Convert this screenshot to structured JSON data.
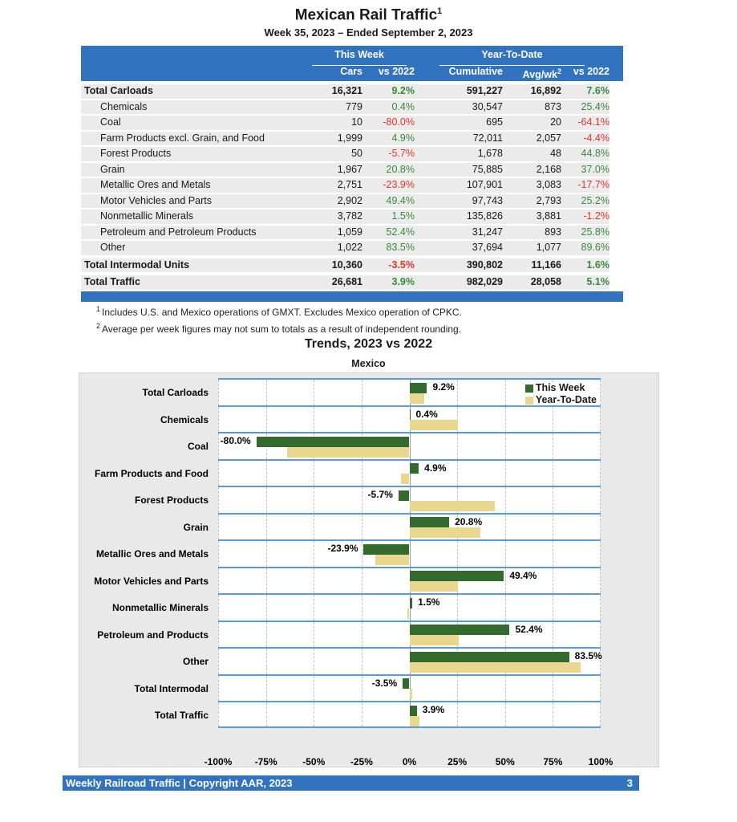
{
  "page": {
    "title": "Mexican Rail Traffic",
    "title_superscript": "1",
    "subtitle": "Week 35, 2023 – Ended September 2, 2023"
  },
  "table": {
    "group_headers": {
      "this_week": "This Week",
      "ytd": "Year-To-Date"
    },
    "columns": {
      "cars": "Cars",
      "cars_vs": "vs 2022",
      "cumulative": "Cumulative",
      "avg_wk": "Avg/wk",
      "avg_wk_superscript": "2",
      "ytd_vs": "vs 2022"
    },
    "rows": [
      {
        "label": "Total Carloads",
        "total": true,
        "cars": "16,321",
        "cars_vs": "9.2%",
        "cumulative": "591,227",
        "avg_wk": "16,892",
        "ytd_vs": "7.6%"
      },
      {
        "label": "Chemicals",
        "total": false,
        "cars": "779",
        "cars_vs": "0.4%",
        "cumulative": "30,547",
        "avg_wk": "873",
        "ytd_vs": "25.4%"
      },
      {
        "label": "Coal",
        "total": false,
        "cars": "10",
        "cars_vs": "-80.0%",
        "cumulative": "695",
        "avg_wk": "20",
        "ytd_vs": "-64.1%"
      },
      {
        "label": "Farm Products excl. Grain, and Food",
        "total": false,
        "cars": "1,999",
        "cars_vs": "4.9%",
        "cumulative": "72,011",
        "avg_wk": "2,057",
        "ytd_vs": "-4.4%"
      },
      {
        "label": "Forest Products",
        "total": false,
        "cars": "50",
        "cars_vs": "-5.7%",
        "cumulative": "1,678",
        "avg_wk": "48",
        "ytd_vs": "44.8%"
      },
      {
        "label": "Grain",
        "total": false,
        "cars": "1,967",
        "cars_vs": "20.8%",
        "cumulative": "75,885",
        "avg_wk": "2,168",
        "ytd_vs": "37.0%"
      },
      {
        "label": "Metallic Ores and Metals",
        "total": false,
        "cars": "2,751",
        "cars_vs": "-23.9%",
        "cumulative": "107,901",
        "avg_wk": "3,083",
        "ytd_vs": "-17.7%"
      },
      {
        "label": "Motor Vehicles and Parts",
        "total": false,
        "cars": "2,902",
        "cars_vs": "49.4%",
        "cumulative": "97,743",
        "avg_wk": "2,793",
        "ytd_vs": "25.2%"
      },
      {
        "label": "Nonmetallic Minerals",
        "total": false,
        "cars": "3,782",
        "cars_vs": "1.5%",
        "cumulative": "135,826",
        "avg_wk": "3,881",
        "ytd_vs": "-1.2%"
      },
      {
        "label": "Petroleum and Petroleum Products",
        "total": false,
        "cars": "1,059",
        "cars_vs": "52.4%",
        "cumulative": "31,247",
        "avg_wk": "893",
        "ytd_vs": "25.8%"
      },
      {
        "label": "Other",
        "total": false,
        "cars": "1,022",
        "cars_vs": "83.5%",
        "cumulative": "37,694",
        "avg_wk": "1,077",
        "ytd_vs": "89.6%"
      },
      {
        "label": "Total Intermodal Units",
        "total": true,
        "cars": "10,360",
        "cars_vs": "-3.5%",
        "cumulative": "390,802",
        "avg_wk": "11,166",
        "ytd_vs": "1.6%"
      },
      {
        "label": "Total Traffic",
        "total": true,
        "cars": "26,681",
        "cars_vs": "3.9%",
        "cumulative": "982,029",
        "avg_wk": "28,058",
        "ytd_vs": "5.1%"
      }
    ]
  },
  "footnotes": [
    {
      "mark": "1",
      "text": "Includes U.S. and Mexico operations of GMXT. Excludes Mexico operation of CPKC."
    },
    {
      "mark": "2",
      "text": "Average per week figures may not sum to totals as a result of independent rounding."
    }
  ],
  "chart_data": {
    "type": "bar",
    "orientation": "horizontal",
    "title": "Trends, 2023 vs 2022",
    "subtitle": "Mexico",
    "categories": [
      "Total Carloads",
      "Chemicals",
      "Coal",
      "Farm Products and Food",
      "Forest Products",
      "Grain",
      "Metallic Ores and Metals",
      "Motor Vehicles and Parts",
      "Nonmetallic Minerals",
      "Petroleum and Products",
      "Other",
      "Total Intermodal",
      "Total Traffic"
    ],
    "series": [
      {
        "name": "This Week",
        "color": "#336b2f",
        "values": [
          9.2,
          0.4,
          -80.0,
          4.9,
          -5.7,
          20.8,
          -23.9,
          49.4,
          1.5,
          52.4,
          83.5,
          -3.5,
          3.9
        ]
      },
      {
        "name": "Year-To-Date",
        "color": "#e9d78e",
        "values": [
          7.6,
          25.4,
          -64.1,
          -4.4,
          44.8,
          37.0,
          -17.7,
          25.2,
          -1.2,
          25.8,
          89.6,
          1.6,
          5.1
        ]
      }
    ],
    "xlim": [
      -100,
      100
    ],
    "ticks": [
      -100,
      -75,
      -50,
      -25,
      0,
      25,
      50,
      75,
      100
    ],
    "tick_suffix": "%",
    "data_labels_series": "This Week",
    "legend_position": "top-right",
    "grid": "dashed-vertical"
  },
  "footer": {
    "text": "Weekly Railroad Traffic | Copyright AAR, 2023",
    "page": "3"
  },
  "colors": {
    "accent_blue": "#3273c0",
    "panel_border_blue": "#5b9bd5",
    "positive_green": "#3a8a3d",
    "negative_red": "#e5362a",
    "bar_this_week_green": "#336b2f",
    "bar_ytd_tan": "#e9d78e",
    "row_background": "#ebebeb",
    "chart_background": "#e9e9e9"
  }
}
